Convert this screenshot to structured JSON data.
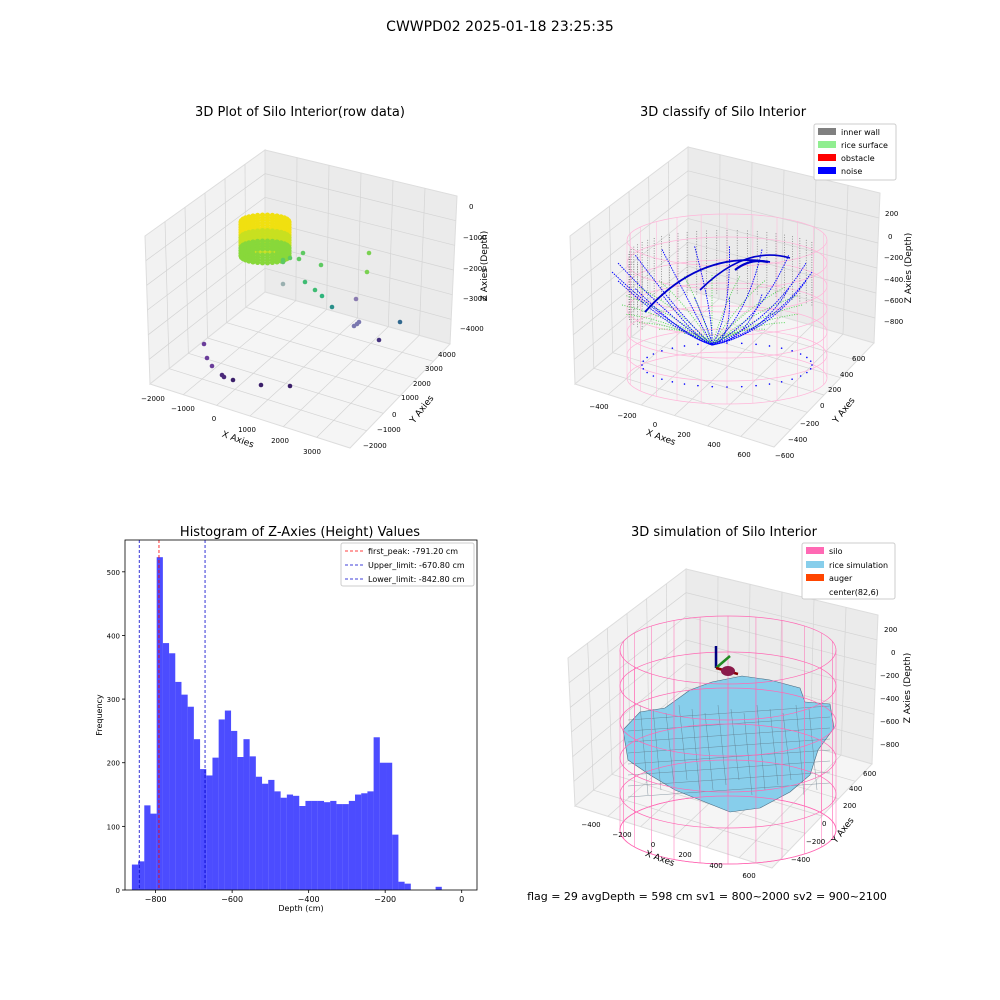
{
  "suptitle": "CWWPD02 2025-01-18 23:25:35",
  "panels": {
    "raw": {
      "title": "3D Plot of Silo Interior(row data)",
      "xlabel": "X Axies",
      "ylabel": "Y Axies",
      "zlabel": "Z Axies (Depth)",
      "xticks": [
        "−2000",
        "−1000",
        "0",
        "1000",
        "2000",
        "3000"
      ],
      "yticks": [
        "−2000",
        "−1000",
        "0",
        "1000",
        "2000",
        "3000",
        "4000"
      ],
      "zticks": [
        "0",
        "−1000",
        "−2000",
        "−3000",
        "−4000"
      ]
    },
    "classify": {
      "title": "3D classify of Silo Interior",
      "xlabel": "X Axes",
      "ylabel": "Y Axes",
      "zlabel": "Z Axies (Depth)",
      "xticks": [
        "−400",
        "−200",
        "0",
        "200",
        "400",
        "600"
      ],
      "yticks": [
        "−600",
        "−400",
        "−200",
        "0",
        "200",
        "400",
        "600"
      ],
      "zticks": [
        "200",
        "0",
        "−200",
        "−400",
        "−600",
        "−800"
      ],
      "legend": [
        {
          "label": "inner wall",
          "color": "#808080"
        },
        {
          "label": "rice surface",
          "color": "#90ee90"
        },
        {
          "label": "obstacle",
          "color": "#ff0000"
        },
        {
          "label": "noise",
          "color": "#0000ff"
        }
      ]
    },
    "simulation": {
      "title": "3D simulation of Silo Interior",
      "xlabel": "X Axes",
      "ylabel": "Y Axes",
      "zlabel": "Z Axies (Depth)",
      "xticks": [
        "−400",
        "−200",
        "0",
        "200",
        "400",
        "600"
      ],
      "yticks": [
        "−400",
        "−200",
        "0",
        "200",
        "400",
        "600"
      ],
      "zticks": [
        "200",
        "0",
        "−200",
        "−400",
        "−600",
        "−800"
      ],
      "legend": [
        {
          "label": "silo",
          "color": "#ff69b4"
        },
        {
          "label": "rice simulation",
          "color": "#87ceeb"
        },
        {
          "label": "auger",
          "color": "#ff4500"
        },
        {
          "label": "center(82,6)",
          "color": ""
        }
      ],
      "status": "flag = 29  avgDepth = 598 cm  sv1 = 800~2000  sv2 = 900~2100"
    }
  },
  "chart_data": {
    "type": "bar",
    "title": "Histogram of Z-Axies (Height) Values",
    "xlabel": "Depth (cm)",
    "ylabel": "Frequency",
    "xlim": [
      -880,
      40
    ],
    "ylim": [
      0,
      550
    ],
    "xticks": [
      -800,
      -600,
      -400,
      -200,
      0
    ],
    "xtick_labels": [
      "−800",
      "−600",
      "−400",
      "−200",
      "0"
    ],
    "yticks": [
      0,
      100,
      200,
      300,
      400,
      500
    ],
    "bin_start": -862,
    "bin_width": 16.2,
    "values": [
      40,
      45,
      133,
      120,
      523,
      388,
      372,
      327,
      307,
      288,
      237,
      190,
      180,
      208,
      268,
      282,
      250,
      209,
      237,
      210,
      178,
      167,
      173,
      155,
      145,
      150,
      148,
      132,
      140,
      140,
      140,
      138,
      140,
      135,
      135,
      140,
      150,
      152,
      155,
      240,
      200,
      200,
      87,
      13,
      10,
      0,
      0,
      0,
      0,
      5
    ],
    "series_color": "#0000ff",
    "vlines": [
      {
        "label": "first_peak: -791.20 cm",
        "x": -791.2,
        "color": "#ff0000"
      },
      {
        "label": "Upper_limit: -670.80 cm",
        "x": -670.8,
        "color": "#0000cc"
      },
      {
        "label": "Lower_limit: -842.80 cm",
        "x": -842.8,
        "color": "#0000cc"
      }
    ]
  }
}
